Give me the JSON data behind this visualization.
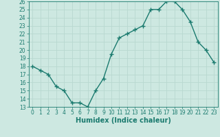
{
  "xlabel": "Humidex (Indice chaleur)",
  "x": [
    0,
    1,
    2,
    3,
    4,
    5,
    6,
    7,
    8,
    9,
    10,
    11,
    12,
    13,
    14,
    15,
    16,
    17,
    18,
    19,
    20,
    21,
    22,
    23
  ],
  "y": [
    18,
    17.5,
    17,
    15.5,
    15,
    13.5,
    13.5,
    13,
    15,
    16.5,
    19.5,
    21.5,
    22,
    22.5,
    23,
    25,
    25,
    26,
    26,
    25,
    23.5,
    21,
    20,
    18.5
  ],
  "line_color": "#1a7a6e",
  "marker": "s",
  "marker_size": 2.5,
  "bg_color": "#cde8e1",
  "grid_color": "#b8d8d0",
  "ylim": [
    13,
    26
  ],
  "xlim": [
    -0.5,
    23.5
  ],
  "yticks": [
    13,
    14,
    15,
    16,
    17,
    18,
    19,
    20,
    21,
    22,
    23,
    24,
    25,
    26
  ],
  "xticks": [
    0,
    1,
    2,
    3,
    4,
    5,
    6,
    7,
    8,
    9,
    10,
    11,
    12,
    13,
    14,
    15,
    16,
    17,
    18,
    19,
    20,
    21,
    22,
    23
  ],
  "tick_fontsize": 5.5,
  "label_fontsize": 7,
  "line_width": 1.0,
  "fig_width": 3.2,
  "fig_height": 2.0,
  "dpi": 100
}
